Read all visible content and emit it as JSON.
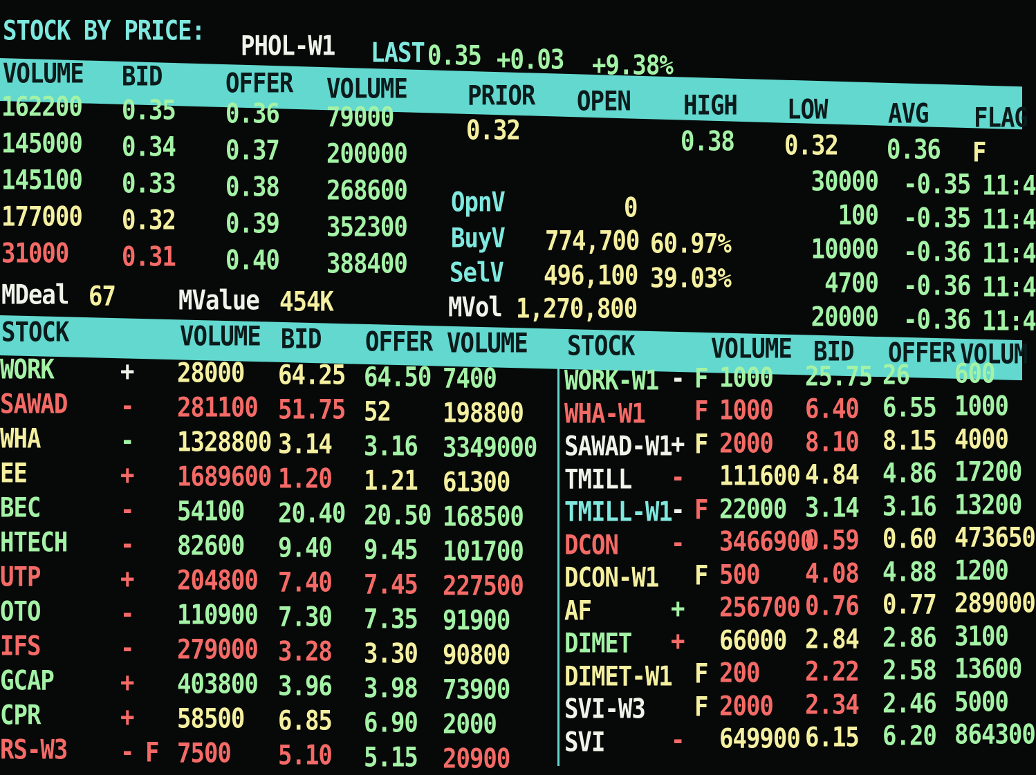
{
  "title": {
    "label": "STOCK BY PRICE:",
    "symbol": "PHOL-W1",
    "last_label": "LAST",
    "last": "0.35",
    "change": "+0.03",
    "change_pct": "+9.38%"
  },
  "book_headers": [
    "VOLUME",
    "BID",
    "OFFER",
    "VOLUME"
  ],
  "summary_headers": [
    "PRIOR",
    "OPEN",
    "HIGH",
    "LOW",
    "AVG",
    "FLAG"
  ],
  "book": [
    {
      "bid_vol": "162200",
      "bid": "0.35",
      "offer": "0.36",
      "offer_vol": "79000",
      "colors": [
        "g",
        "g",
        "g",
        "g"
      ]
    },
    {
      "bid_vol": "145000",
      "bid": "0.34",
      "offer": "0.37",
      "offer_vol": "200000",
      "colors": [
        "g",
        "g",
        "g",
        "g"
      ]
    },
    {
      "bid_vol": "145100",
      "bid": "0.33",
      "offer": "0.38",
      "offer_vol": "268600",
      "colors": [
        "g",
        "g",
        "g",
        "g"
      ]
    },
    {
      "bid_vol": "177000",
      "bid": "0.32",
      "offer": "0.39",
      "offer_vol": "352300",
      "colors": [
        "y",
        "y",
        "g",
        "g"
      ]
    },
    {
      "bid_vol": "31000",
      "bid": "0.31",
      "offer": "0.40",
      "offer_vol": "388400",
      "colors": [
        "r",
        "r",
        "g",
        "g"
      ]
    }
  ],
  "summary": {
    "prior": "0.32",
    "open": "",
    "high": "0.38",
    "low": "0.32",
    "avg": "0.36",
    "flag": "F"
  },
  "stats": {
    "opnv_label": "OpnV",
    "opnv": "0",
    "buyv_label": "BuyV",
    "buyv": "774,700",
    "buyv_pct": "60.97%",
    "selv_label": "SelV",
    "selv": "496,100",
    "selv_pct": "39.03%",
    "mvol_label": "MVol",
    "mvol": "1,270,800",
    "mdeal_label": "MDeal",
    "mdeal": "67",
    "mvalue_label": "MValue",
    "mvalue": "454K"
  },
  "trades": [
    {
      "volume": "30000",
      "change": "-0.35",
      "time": "11:4"
    },
    {
      "volume": "100",
      "change": "-0.35",
      "time": "11:4"
    },
    {
      "volume": "10000",
      "change": "-0.36",
      "time": "11:4"
    },
    {
      "volume": "4700",
      "change": "-0.36",
      "time": "11:4"
    },
    {
      "volume": "20000",
      "change": "-0.36",
      "time": "11:4"
    }
  ],
  "list_headers": {
    "left": [
      "STOCK",
      "VOLUME",
      "BID",
      "OFFER",
      "VOLUME"
    ],
    "right": [
      "STOCK",
      "VOLUME",
      "BID",
      "OFFER",
      "VOLUM"
    ]
  },
  "left_list": [
    {
      "name": "WORK",
      "sign": "+",
      "flag": "",
      "vol": "28000",
      "bid": "64.25",
      "offer": "64.50",
      "offer_vol": "7400",
      "colors": [
        "g",
        "w",
        "w",
        "y",
        "y",
        "g",
        "g"
      ]
    },
    {
      "name": "SAWAD",
      "sign": "-",
      "flag": "",
      "vol": "281100",
      "bid": "51.75",
      "offer": "52",
      "offer_vol": "198800",
      "colors": [
        "r",
        "r",
        "r",
        "r",
        "r",
        "y",
        "y"
      ]
    },
    {
      "name": "WHA",
      "sign": "-",
      "flag": "",
      "vol": "1328800",
      "bid": "3.14",
      "offer": "3.16",
      "offer_vol": "3349000",
      "colors": [
        "y",
        "g",
        "g",
        "y",
        "y",
        "g",
        "g"
      ]
    },
    {
      "name": "EE",
      "sign": "+",
      "flag": "",
      "vol": "1689600",
      "bid": "1.20",
      "offer": "1.21",
      "offer_vol": "61300",
      "colors": [
        "y",
        "r",
        "r",
        "r",
        "r",
        "y",
        "y"
      ]
    },
    {
      "name": "BEC",
      "sign": "-",
      "flag": "",
      "vol": "54100",
      "bid": "20.40",
      "offer": "20.50",
      "offer_vol": "168500",
      "colors": [
        "g",
        "r",
        "r",
        "g",
        "g",
        "g",
        "g"
      ]
    },
    {
      "name": "HTECH",
      "sign": "-",
      "flag": "",
      "vol": "82600",
      "bid": "9.40",
      "offer": "9.45",
      "offer_vol": "101700",
      "colors": [
        "g",
        "r",
        "r",
        "g",
        "g",
        "g",
        "g"
      ]
    },
    {
      "name": "UTP",
      "sign": "+",
      "flag": "",
      "vol": "204800",
      "bid": "7.40",
      "offer": "7.45",
      "offer_vol": "227500",
      "colors": [
        "r",
        "r",
        "r",
        "r",
        "r",
        "r",
        "r"
      ]
    },
    {
      "name": "OTO",
      "sign": "-",
      "flag": "",
      "vol": "110900",
      "bid": "7.30",
      "offer": "7.35",
      "offer_vol": "91900",
      "colors": [
        "g",
        "r",
        "r",
        "g",
        "g",
        "g",
        "g"
      ]
    },
    {
      "name": "IFS",
      "sign": "-",
      "flag": "",
      "vol": "279000",
      "bid": "3.28",
      "offer": "3.30",
      "offer_vol": "90800",
      "colors": [
        "r",
        "r",
        "r",
        "r",
        "r",
        "y",
        "y"
      ]
    },
    {
      "name": "GCAP",
      "sign": "+",
      "flag": "",
      "vol": "403800",
      "bid": "3.96",
      "offer": "3.98",
      "offer_vol": "73900",
      "colors": [
        "g",
        "r",
        "r",
        "g",
        "g",
        "g",
        "g"
      ]
    },
    {
      "name": "CPR",
      "sign": "+",
      "flag": "",
      "vol": "58500",
      "bid": "6.85",
      "offer": "6.90",
      "offer_vol": "2000",
      "colors": [
        "g",
        "r",
        "r",
        "y",
        "y",
        "g",
        "g"
      ]
    },
    {
      "name": "RS-W3",
      "sign": "-",
      "flag": "F",
      "vol": "7500",
      "bid": "5.10",
      "offer": "5.15",
      "offer_vol": "20900",
      "colors": [
        "r",
        "r",
        "r",
        "r",
        "r",
        "g",
        "r"
      ]
    }
  ],
  "right_list": [
    {
      "name": "WORK-W1",
      "sign": "-",
      "flag": "F",
      "vol": "1000",
      "bid": "25.75",
      "offer": "26",
      "offer_vol": "600",
      "colors": [
        "g",
        "w",
        "g",
        "g",
        "g",
        "g",
        "g"
      ]
    },
    {
      "name": "WHA-W1",
      "sign": "",
      "flag": "F",
      "vol": "1000",
      "bid": "6.40",
      "offer": "6.55",
      "offer_vol": "1000",
      "colors": [
        "r",
        "r",
        "r",
        "r",
        "r",
        "g",
        "g"
      ]
    },
    {
      "name": "SAWAD-W1",
      "sign": "+",
      "flag": "F",
      "vol": "2000",
      "bid": "8.10",
      "offer": "8.15",
      "offer_vol": "4000",
      "colors": [
        "w",
        "w",
        "y",
        "r",
        "r",
        "y",
        "y"
      ]
    },
    {
      "name": "TMILL",
      "sign": "-",
      "flag": "",
      "vol": "111600",
      "bid": "4.84",
      "offer": "4.86",
      "offer_vol": "17200",
      "colors": [
        "w",
        "r",
        "r",
        "y",
        "y",
        "g",
        "g"
      ]
    },
    {
      "name": "TMILL-W1",
      "sign": "-",
      "flag": "F",
      "vol": "22000",
      "bid": "3.14",
      "offer": "3.16",
      "offer_vol": "13200",
      "colors": [
        "c",
        "w",
        "r",
        "g",
        "g",
        "g",
        "g"
      ]
    },
    {
      "name": "DCON",
      "sign": "-",
      "flag": "",
      "vol": "3466900",
      "bid": "0.59",
      "offer": "0.60",
      "offer_vol": "473650",
      "colors": [
        "r",
        "r",
        "r",
        "r",
        "r",
        "y",
        "y"
      ]
    },
    {
      "name": "DCON-W1",
      "sign": "",
      "flag": "F",
      "vol": "500",
      "bid": "4.08",
      "offer": "4.88",
      "offer_vol": "1200",
      "colors": [
        "y",
        "y",
        "y",
        "r",
        "r",
        "g",
        "g"
      ]
    },
    {
      "name": "AF",
      "sign": "+",
      "flag": "",
      "vol": "256700",
      "bid": "0.76",
      "offer": "0.77",
      "offer_vol": "289000",
      "colors": [
        "y",
        "g",
        "g",
        "r",
        "r",
        "y",
        "y"
      ]
    },
    {
      "name": "DIMET",
      "sign": "+",
      "flag": "",
      "vol": "66000",
      "bid": "2.84",
      "offer": "2.86",
      "offer_vol": "3100",
      "colors": [
        "g",
        "r",
        "r",
        "y",
        "y",
        "g",
        "g"
      ]
    },
    {
      "name": "DIMET-W1",
      "sign": "",
      "flag": "F",
      "vol": "200",
      "bid": "2.22",
      "offer": "2.58",
      "offer_vol": "13600",
      "colors": [
        "y",
        "y",
        "y",
        "r",
        "r",
        "g",
        "g"
      ]
    },
    {
      "name": "SVI-W3",
      "sign": "",
      "flag": "F",
      "vol": "2000",
      "bid": "2.34",
      "offer": "2.46",
      "offer_vol": "5000",
      "colors": [
        "w",
        "y",
        "y",
        "r",
        "r",
        "g",
        "g"
      ]
    },
    {
      "name": "SVI",
      "sign": "-",
      "flag": "",
      "vol": "649900",
      "bid": "6.15",
      "offer": "6.20",
      "offer_vol": "864300",
      "colors": [
        "w",
        "r",
        "r",
        "y",
        "y",
        "g",
        "g"
      ]
    }
  ]
}
